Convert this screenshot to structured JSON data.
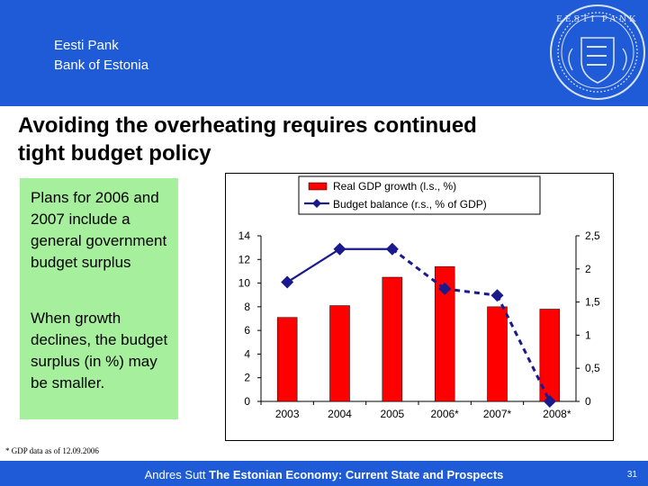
{
  "header": {
    "bank_name_et": "Eesti Pank",
    "bank_name_en": "Bank of Estonia",
    "seal_icon": "eesti-pank-seal-icon",
    "background_color": "#1f5bd6"
  },
  "slide": {
    "title_line1": "Avoiding the overheating requires continued",
    "title_line2": "tight budget policy"
  },
  "textbox": {
    "paragraph1": "Plans for 2006 and 2007 include a general government budget surplus",
    "paragraph2": "When growth declines, the budget surplus (in %) may be smaller.",
    "background_color": "#a6f09d"
  },
  "chart_data": {
    "type": "bar+line",
    "categories": [
      "2003",
      "2004",
      "2005",
      "2006*",
      "2007*",
      "2008*"
    ],
    "series": [
      {
        "name": "Real GDP growth (l.s., %)",
        "type": "bar",
        "axis": "left",
        "color": "#ff0000",
        "values": [
          7.1,
          8.1,
          10.5,
          11.4,
          8.0,
          7.8
        ]
      },
      {
        "name": "Budget balance (r.s., % of GDP)",
        "type": "line",
        "axis": "right",
        "color": "#1a1a8c",
        "values": [
          1.8,
          2.3,
          2.3,
          1.7,
          1.6,
          0.0
        ],
        "solid_until_index": 2
      }
    ],
    "left_axis": {
      "min": 0,
      "max": 14,
      "step": 2,
      "tick_labels": [
        "0",
        "2",
        "4",
        "6",
        "8",
        "10",
        "12",
        "14"
      ]
    },
    "right_axis": {
      "min": 0,
      "max": 2.5,
      "step": 0.5,
      "tick_labels": [
        "0",
        "0,5",
        "1",
        "1,5",
        "2",
        "2,5"
      ]
    },
    "legend": [
      "Real GDP growth (l.s., %)",
      "Budget balance (r.s., % of GDP)"
    ],
    "legend_position": "top-right",
    "grid": false
  },
  "footnote": "* GDP data as of 12.09.2006",
  "footer": {
    "author": "Andres Sutt",
    "presentation_title": "The Estonian Economy: Current State and Prospects",
    "page_number": "31"
  }
}
